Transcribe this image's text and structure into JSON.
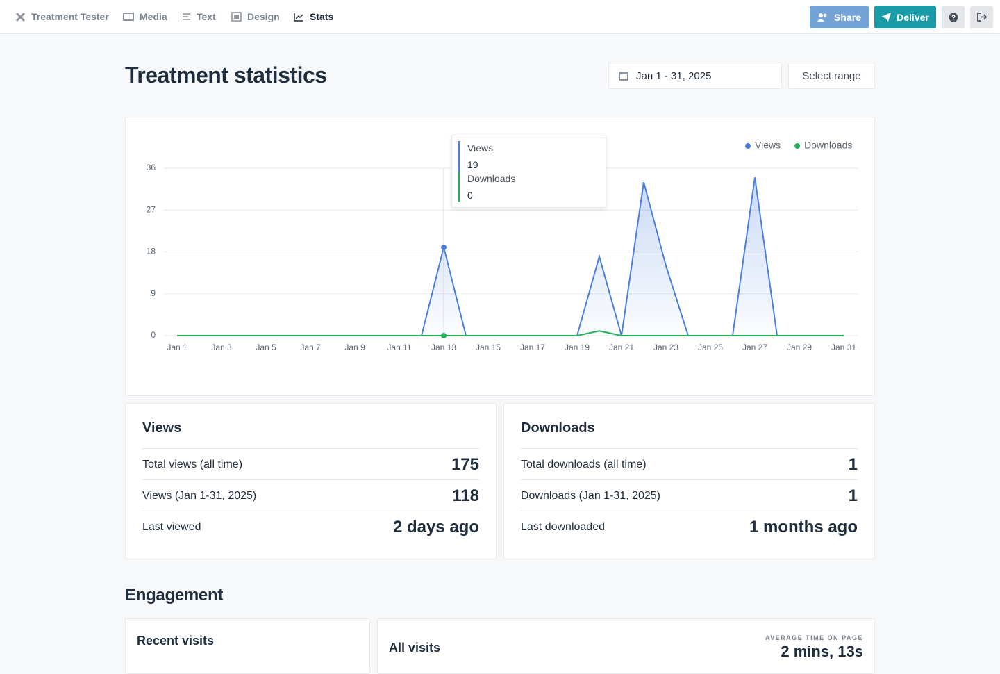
{
  "nav": {
    "items": [
      "Treatment Tester",
      "Media",
      "Text",
      "Design",
      "Stats"
    ],
    "buttons": [
      "Share",
      "Deliver"
    ]
  },
  "header": {
    "title": "Treatment statistics",
    "date_range": "Jan 1 - 31, 2025",
    "select_range": "Select range"
  },
  "chart_data": {
    "type": "line",
    "categories": [
      "Jan 1",
      null,
      "Jan 3",
      null,
      "Jan 5",
      null,
      "Jan 7",
      null,
      "Jan 9",
      null,
      "Jan 11",
      null,
      "Jan 13",
      null,
      "Jan 15",
      null,
      "Jan 17",
      null,
      "Jan 19",
      null,
      "Jan 21",
      null,
      "Jan 23",
      null,
      "Jan 25",
      null,
      "Jan 27",
      null,
      "Jan 29",
      null,
      "Jan 31"
    ],
    "series": [
      {
        "name": "Views",
        "color": "#4a7fdd",
        "values": [
          0,
          0,
          0,
          0,
          0,
          0,
          0,
          0,
          0,
          0,
          0,
          0,
          19,
          0,
          0,
          0,
          0,
          0,
          0,
          17,
          0,
          33,
          15,
          0,
          0,
          0,
          34,
          0,
          0,
          0,
          0
        ]
      },
      {
        "name": "Downloads",
        "color": "#22b35a",
        "values": [
          0,
          0,
          0,
          0,
          0,
          0,
          0,
          0,
          0,
          0,
          0,
          0,
          0,
          0,
          0,
          0,
          0,
          0,
          0,
          1,
          0,
          0,
          0,
          0,
          0,
          0,
          0,
          0,
          0,
          0,
          0
        ]
      }
    ],
    "ylim": [
      0,
      36
    ],
    "yticks": [
      0,
      9,
      18,
      27,
      36
    ],
    "grid": true,
    "legend": "top-right"
  },
  "views_card": {
    "title": "Views",
    "rows": [
      [
        "Total views (all time)",
        175
      ],
      [
        "Views (Jan 1-31, 2025)",
        118
      ],
      [
        "Last viewed",
        "2 days ago"
      ]
    ]
  },
  "downloads_card": {
    "title": "Downloads",
    "rows": [
      [
        "Total downloads (all time)",
        1
      ],
      [
        "Downloads (Jan 1-31, 2025)",
        1
      ],
      [
        "Last downloaded",
        "1 months ago"
      ]
    ]
  },
  "engagement": {
    "title": "Engagement",
    "recent_visits": "Recent visits",
    "all_visits": "All visits",
    "avg_label": "AVERAGE TIME ON PAGE",
    "avg_value": "2 mins, 13s"
  }
}
